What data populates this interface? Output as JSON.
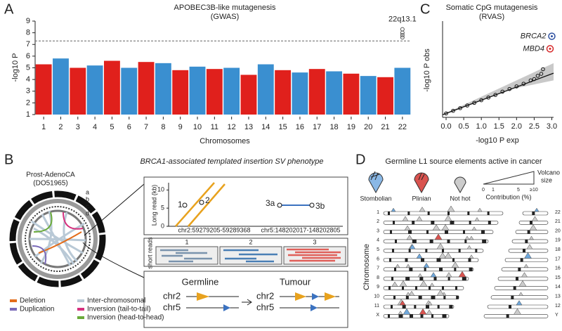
{
  "panel_labels": [
    "A",
    "B",
    "C",
    "D"
  ],
  "chart_data": [
    {
      "type": "manhattan",
      "title": "APOBEC3B-like mutagenesis",
      "subtitle": "(GWAS)",
      "xlabel": "Chromosomes",
      "ylabel": "-log10 P",
      "categories": [
        "1",
        "2",
        "3",
        "4",
        "5",
        "6",
        "7",
        "8",
        "9",
        "10",
        "11",
        "12",
        "13",
        "14",
        "15",
        "16",
        "17",
        "18",
        "19",
        "20",
        "21",
        "22"
      ],
      "values": [
        5.3,
        5.8,
        5.0,
        5.2,
        5.6,
        5.0,
        5.5,
        5.4,
        4.8,
        5.1,
        4.9,
        5.0,
        4.4,
        5.3,
        4.8,
        4.6,
        4.9,
        4.7,
        4.5,
        4.3,
        4.2,
        5.0
      ],
      "colors": [
        "#e0201c",
        "#3a8fd0"
      ],
      "ylim": [
        1,
        9
      ],
      "yticks": [
        1,
        2,
        3,
        4,
        5,
        6,
        7,
        8,
        9
      ],
      "threshold": 7.3,
      "annotation": "22q13.1",
      "hit_values": [
        7.6,
        7.8,
        8.0,
        8.3
      ]
    },
    {
      "type": "scatter",
      "title": "Somatic CpG mutagenesis",
      "subtitle": "(RVAS)",
      "xlabel": "-log10 P exp",
      "ylabel": "-log10 P obs",
      "x": [
        0,
        0.2,
        0.4,
        0.6,
        0.8,
        1.0,
        1.2,
        1.4,
        1.6,
        1.8,
        2.0,
        2.2,
        2.4,
        2.5,
        2.6,
        2.7,
        2.75
      ],
      "y": [
        0,
        0.2,
        0.4,
        0.6,
        0.8,
        1.0,
        1.2,
        1.4,
        1.65,
        1.85,
        2.05,
        2.25,
        2.5,
        2.6,
        2.85,
        3.0,
        3.35
      ],
      "color": "#111111",
      "highlights": [
        {
          "name": "BRCA2",
          "x": 3.0,
          "y": 5.85,
          "color": "#2c4fa0"
        },
        {
          "name": "MBD4",
          "x": 2.95,
          "y": 4.9,
          "color": "#d62728"
        }
      ],
      "xlim": [
        -0.1,
        3.05
      ],
      "ylim": [
        -0.3,
        7
      ],
      "xticks": [
        {
          "value": 0,
          "label": "0.0"
        },
        {
          "value": 0.5,
          "label": "0.5"
        },
        {
          "value": 1,
          "label": "1.0"
        },
        {
          "value": 1.5,
          "label": "1.5"
        },
        {
          "value": 2,
          "label": "2.0"
        },
        {
          "value": 2.5,
          "label": "2.5"
        },
        {
          "value": 3,
          "label": "3.0"
        }
      ]
    }
  ],
  "panel_b": {
    "title": "BRCA1-associated templated insertion SV phenotype",
    "sample": "Prost-AdenoCA",
    "sample_id": "(DO51965)",
    "rings": [
      "a",
      "b",
      "c",
      "d"
    ],
    "legend": [
      "Deletion",
      "Duplication",
      "Inter-chromosomal",
      "Inversion (tail-to-tail)",
      "Inversion (head-to-head)"
    ],
    "long_read": {
      "ylabel": "Long read (kb)",
      "yticks": [
        0,
        5,
        10
      ],
      "ylim": [
        0,
        12
      ],
      "points": [
        "1",
        "2",
        "3a",
        "3b"
      ],
      "xlabels": [
        "chr2:59279205-59289368",
        "chr5:148202017-148202805"
      ]
    },
    "short_reads": {
      "label": "short reads",
      "tracks": [
        "1",
        "2",
        "3"
      ]
    },
    "germline": "Germline",
    "tumour": "Tumour",
    "chr_a": "chr2",
    "chr_b": "chr5"
  },
  "panel_d": {
    "title": "Germline L1 source elements active in cancer",
    "legend": [
      "Stombolian",
      "Plinian",
      "Not hot"
    ],
    "scale_label": "Contribution (%)",
    "scale_ticks": [
      "0",
      "1",
      "5",
      "≥10"
    ],
    "size_label": [
      "Volcano",
      "size"
    ],
    "ylabel": "Chromosome",
    "left": [
      "1",
      "2",
      "3",
      "4",
      "5",
      "6",
      "7",
      "8",
      "9",
      "10",
      "11",
      "X"
    ],
    "right": [
      "22",
      "21",
      "20",
      "19",
      "18",
      "17",
      "16",
      "15",
      "14",
      "13",
      "12",
      "Y"
    ]
  }
}
